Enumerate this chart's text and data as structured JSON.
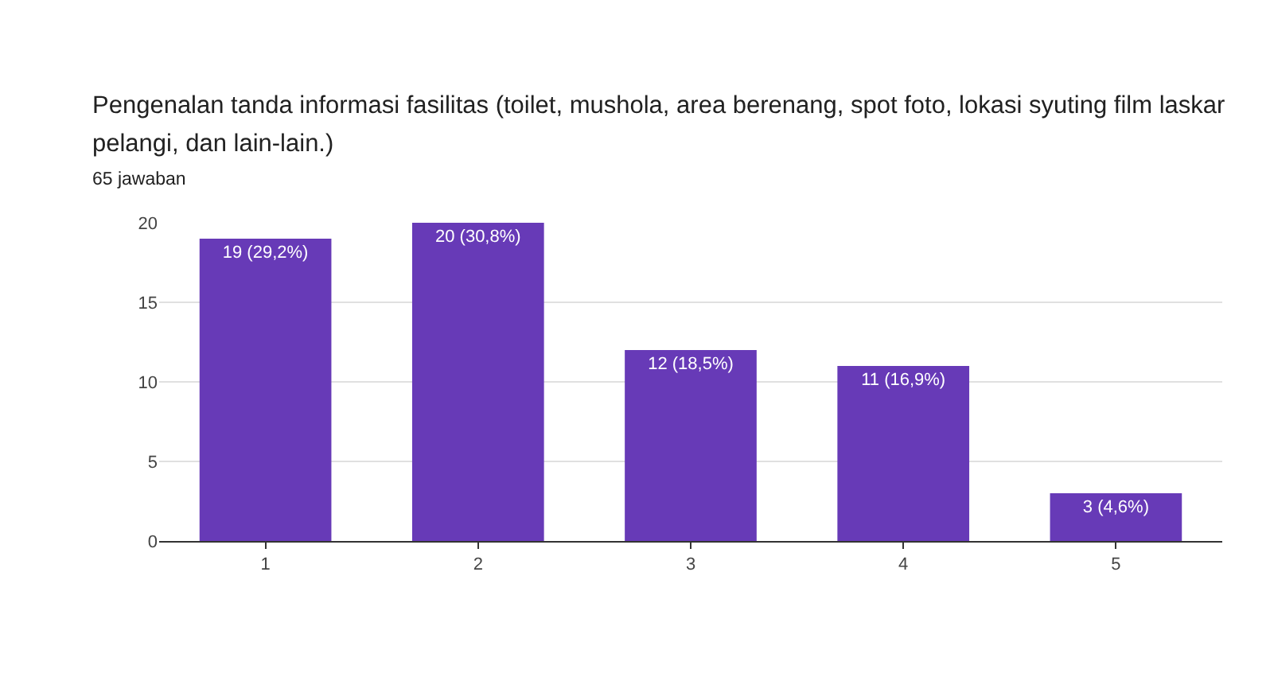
{
  "chart_data": {
    "type": "bar",
    "title": "Pengenalan tanda informasi fasilitas  (toilet, mushola, area berenang, spot foto, lokasi syuting film laskar pelangi, dan lain-lain.)",
    "subtitle": "65 jawaban",
    "categories": [
      "1",
      "2",
      "3",
      "4",
      "5"
    ],
    "values": [
      19,
      20,
      12,
      11,
      3
    ],
    "value_labels": [
      "19 (29,2%)",
      "20 (30,8%)",
      "12 (18,5%)",
      "11 (16,9%)",
      "3 (4,6%)"
    ],
    "color": "#673ab7",
    "ylim": [
      0,
      20
    ],
    "yticks": [
      0,
      5,
      10,
      15,
      20
    ],
    "grid": "y"
  }
}
